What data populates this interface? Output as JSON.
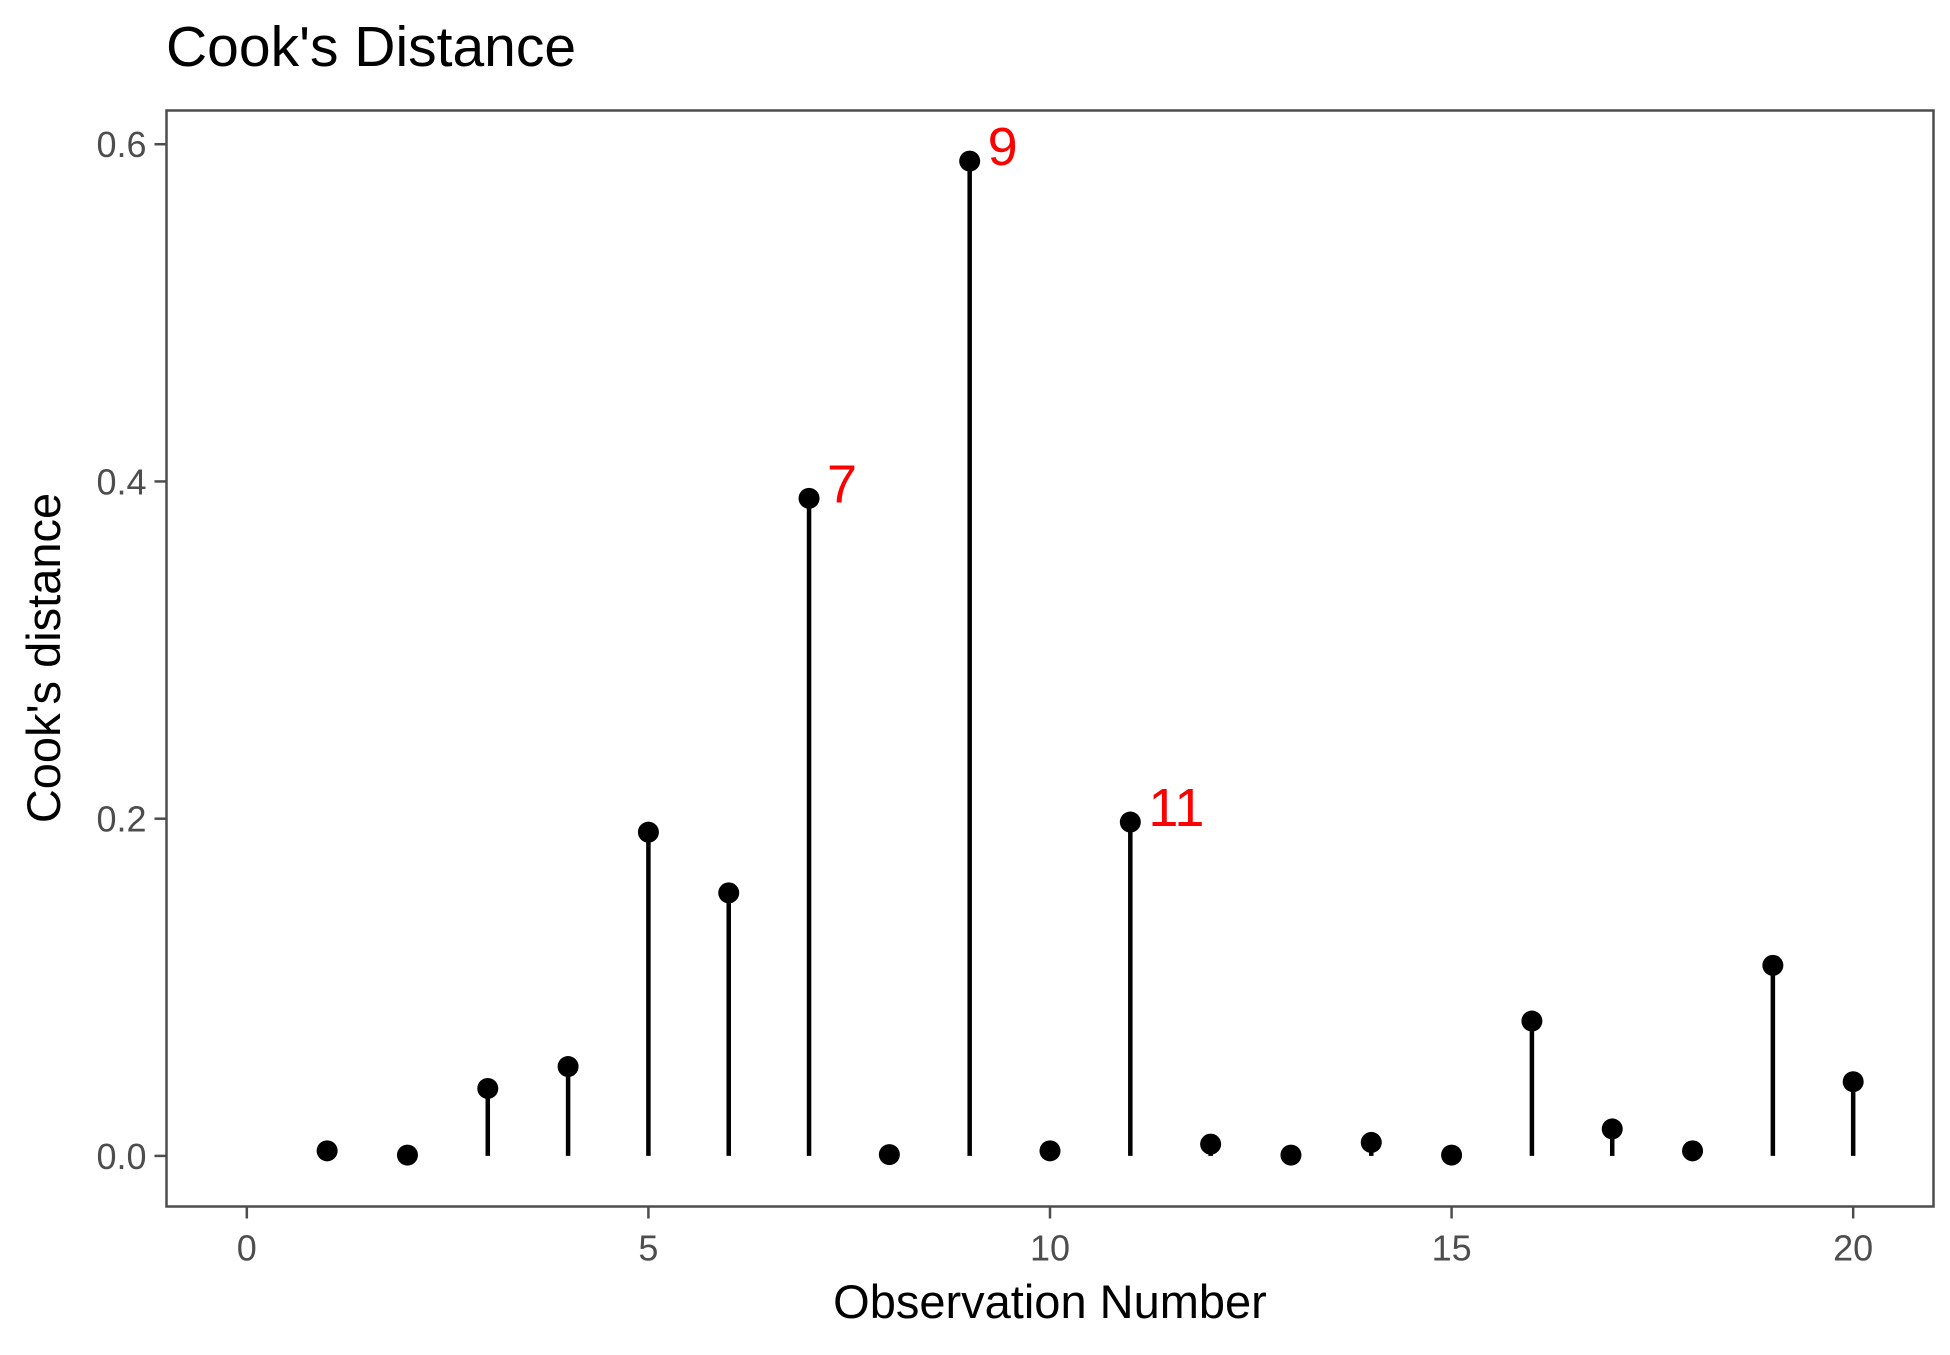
{
  "chart_data": {
    "type": "scatter",
    "title": "Cook's Distance",
    "xlabel": "Observation Number",
    "ylabel": "Cook's distance",
    "xlim": [
      -1,
      21
    ],
    "ylim": [
      -0.03,
      0.62
    ],
    "x_ticks": [
      0,
      5,
      10,
      15,
      20
    ],
    "x_tick_labels": [
      "0",
      "5",
      "10",
      "15",
      "20"
    ],
    "y_ticks": [
      0.0,
      0.2,
      0.4,
      0.6
    ],
    "y_tick_labels": [
      "0.0",
      "0.2",
      "0.4",
      "0.6"
    ],
    "grid": false,
    "series": [
      {
        "x": [
          1,
          2,
          3,
          4,
          5,
          6,
          7,
          8,
          9,
          10,
          11,
          12,
          13,
          14,
          15,
          16,
          17,
          18,
          19,
          20
        ],
        "y": [
          0.003,
          0.0005,
          0.04,
          0.053,
          0.192,
          0.156,
          0.39,
          0.0008,
          0.59,
          0.003,
          0.198,
          0.007,
          0.0005,
          0.008,
          0.0005,
          0.08,
          0.016,
          0.003,
          0.113,
          0.044
        ]
      }
    ],
    "annotations": [
      {
        "x": 7,
        "text": "7"
      },
      {
        "x": 9,
        "text": "9"
      },
      {
        "x": 11,
        "text": "11"
      }
    ],
    "colors": {
      "points": "#000000",
      "stems": "#000000",
      "annotation": "#ff0000",
      "panel_border": "#4d4d4d",
      "tick_label": "#4d4d4d"
    }
  }
}
